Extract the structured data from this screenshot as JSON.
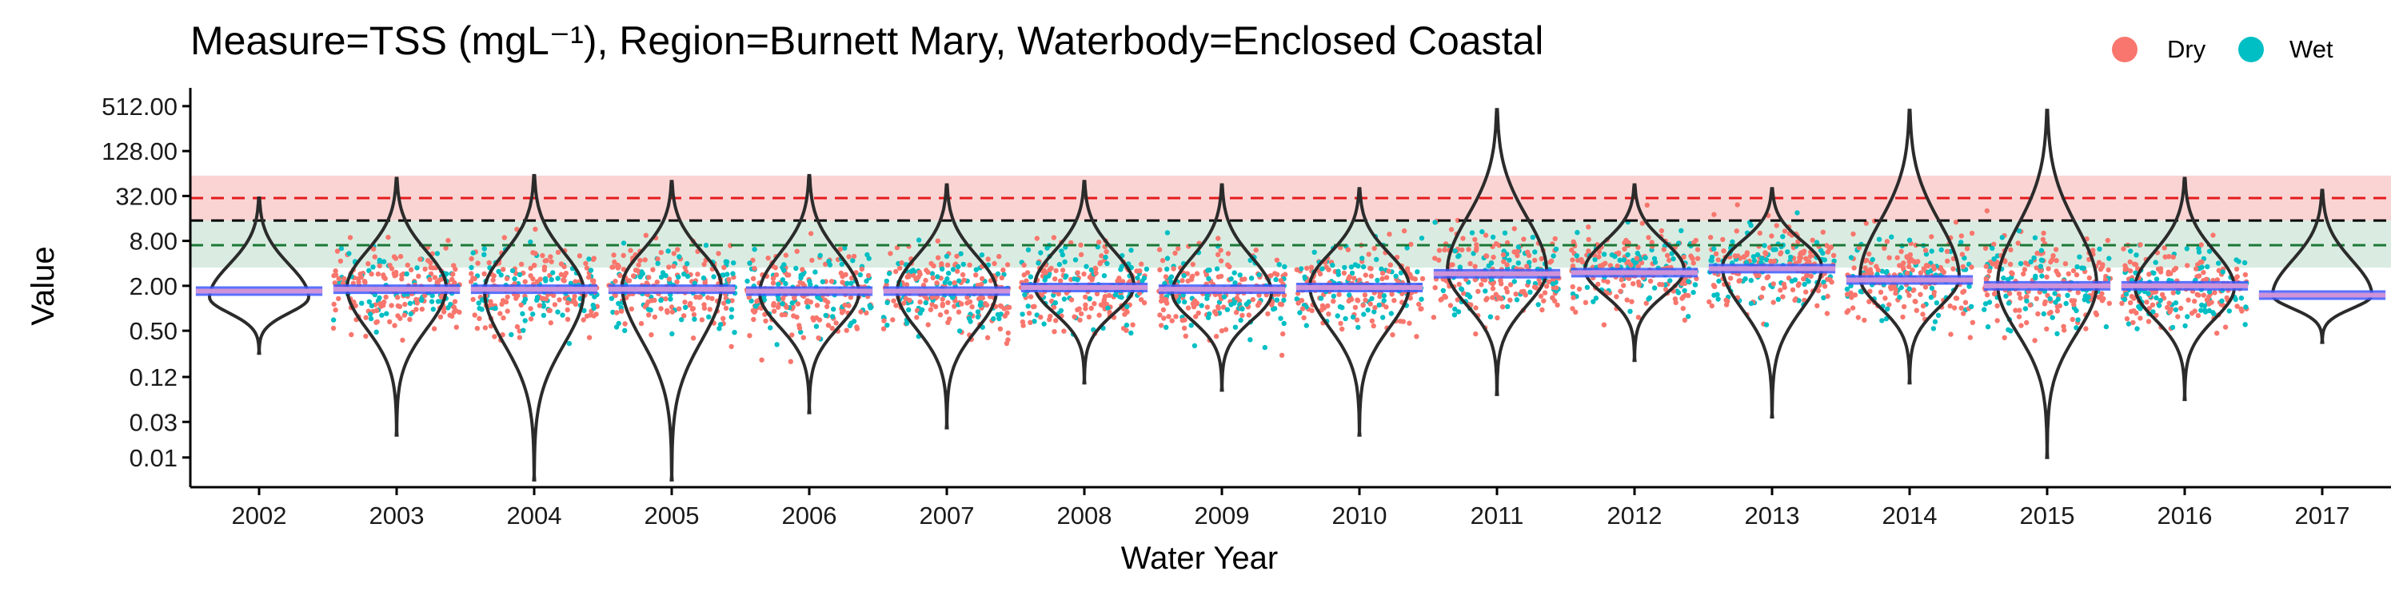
{
  "chart_data": {
    "type": "scatter",
    "title": "Measure=TSS (mgL⁻¹), Region=Burnett Mary, Waterbody=Enclosed Coastal",
    "xlabel": "Water Year",
    "ylabel": "Value",
    "y_scale": "log2",
    "categories": [
      "2002",
      "2003",
      "2004",
      "2005",
      "2006",
      "2007",
      "2008",
      "2009",
      "2010",
      "2011",
      "2012",
      "2013",
      "2014",
      "2015",
      "2016",
      "2017"
    ],
    "y_ticks": [
      0.01,
      0.03,
      0.12,
      0.5,
      2,
      8,
      32,
      128,
      512
    ],
    "y_tick_labels": [
      "0.01",
      "0.03",
      "0.12",
      "0.50",
      "2.00",
      "8.00",
      "32.00",
      "128.00",
      "512.00"
    ],
    "ylim": [
      0.004,
      900
    ],
    "legend": {
      "position": "top-right",
      "entries": [
        {
          "label": "Dry",
          "color": "#F8766D"
        },
        {
          "label": "Wet",
          "color": "#00BFC4"
        }
      ]
    },
    "reference_lines": [
      {
        "value": 30,
        "color": "#E41A1C"
      },
      {
        "value": 15,
        "color": "#000000"
      },
      {
        "value": 7,
        "color": "#1B7837"
      }
    ],
    "reference_bands": [
      {
        "from": 15,
        "to": 60,
        "color": "#F8C6C4"
      },
      {
        "from": 3.5,
        "to": 15,
        "color": "#CDE6D7"
      }
    ],
    "trend_median": [
      1.7,
      1.8,
      1.8,
      1.8,
      1.7,
      1.7,
      1.9,
      1.8,
      1.9,
      2.9,
      3.0,
      3.4,
      2.4,
      2.0,
      2.0,
      1.5
    ],
    "violins": [
      {
        "year": "2002",
        "min": 0.25,
        "max": 30,
        "median": 1.4,
        "data_points": false
      },
      {
        "year": "2003",
        "min": 0.02,
        "max": 55,
        "median": 1.9,
        "data_points": true
      },
      {
        "year": "2004",
        "min": 0.005,
        "max": 60,
        "median": 1.7,
        "data_points": true
      },
      {
        "year": "2005",
        "min": 0.005,
        "max": 50,
        "median": 2.0,
        "data_points": true
      },
      {
        "year": "2006",
        "min": 0.04,
        "max": 60,
        "median": 1.6,
        "data_points": true
      },
      {
        "year": "2007",
        "min": 0.025,
        "max": 45,
        "median": 1.7,
        "data_points": true
      },
      {
        "year": "2008",
        "min": 0.1,
        "max": 50,
        "median": 2.0,
        "data_points": true
      },
      {
        "year": "2009",
        "min": 0.08,
        "max": 45,
        "median": 1.6,
        "data_points": true
      },
      {
        "year": "2010",
        "min": 0.02,
        "max": 40,
        "median": 2.0,
        "data_points": true
      },
      {
        "year": "2011",
        "min": 0.07,
        "max": 460,
        "median": 3.2,
        "data_points": true
      },
      {
        "year": "2012",
        "min": 0.2,
        "max": 45,
        "median": 3.3,
        "data_points": true
      },
      {
        "year": "2013",
        "min": 0.035,
        "max": 40,
        "median": 3.6,
        "data_points": true
      },
      {
        "year": "2014",
        "min": 0.1,
        "max": 450,
        "median": 2.6,
        "data_points": true
      },
      {
        "year": "2015",
        "min": 0.01,
        "max": 450,
        "median": 2.1,
        "data_points": true
      },
      {
        "year": "2016",
        "min": 0.06,
        "max": 55,
        "median": 1.9,
        "data_points": true
      },
      {
        "year": "2017",
        "min": 0.35,
        "max": 38,
        "median": 1.5,
        "data_points": false
      }
    ],
    "grid": false
  }
}
